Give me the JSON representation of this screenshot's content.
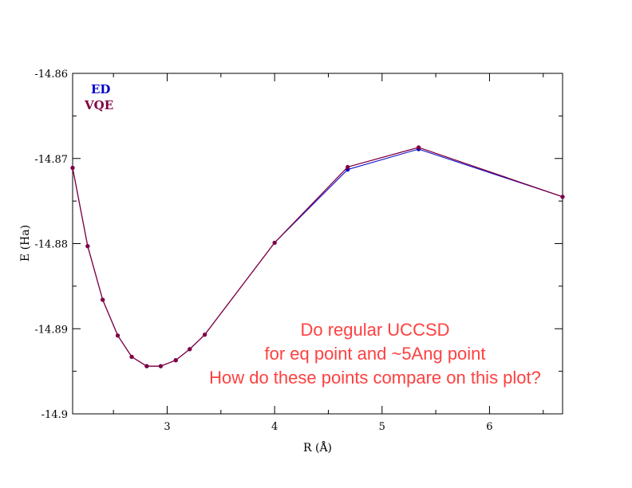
{
  "chart_data": {
    "type": "line",
    "title": "",
    "xlabel": "R (Å)",
    "ylabel": "E (Ha)",
    "xlim": [
      2.12,
      6.68
    ],
    "ylim": [
      -14.9,
      -14.86
    ],
    "x_ticks": [
      3,
      4,
      5,
      6
    ],
    "x_tick_labels": [
      "3",
      "4",
      "5",
      "6"
    ],
    "y_ticks": [
      -14.9,
      -14.89,
      -14.88,
      -14.87,
      -14.86
    ],
    "y_tick_labels": [
      "-14.9",
      "-14.89",
      "-14.88",
      "-14.87",
      "-14.86"
    ],
    "grid": false,
    "legend_position": "top-left",
    "series": [
      {
        "name": "ED",
        "color": "#0000cc",
        "x": [
          2.12,
          2.26,
          2.4,
          2.54,
          2.67,
          2.81,
          2.94,
          3.08,
          3.21,
          3.35,
          4.0,
          4.68,
          5.34,
          6.68
        ],
        "y": [
          -14.8711,
          -14.8803,
          -14.8866,
          -14.8908,
          -14.8933,
          -14.8944,
          -14.8944,
          -14.8937,
          -14.8924,
          -14.8907,
          -14.8799,
          -14.8713,
          -14.8689,
          -14.8745
        ]
      },
      {
        "name": "VQE",
        "color": "#800040",
        "x": [
          2.12,
          2.26,
          2.4,
          2.54,
          2.67,
          2.81,
          2.94,
          3.08,
          3.21,
          3.35,
          4.0,
          4.68,
          5.34,
          6.68
        ],
        "y": [
          -14.8711,
          -14.8803,
          -14.8866,
          -14.8908,
          -14.8933,
          -14.8944,
          -14.8944,
          -14.8937,
          -14.8924,
          -14.8907,
          -14.8799,
          -14.871,
          -14.8687,
          -14.8745
        ]
      }
    ],
    "annotation": {
      "lines": [
        "Do regular UCCSD",
        "for eq point and ~5Ang point",
        "How do these points compare on this plot?"
      ],
      "color": "#ff4040"
    }
  }
}
